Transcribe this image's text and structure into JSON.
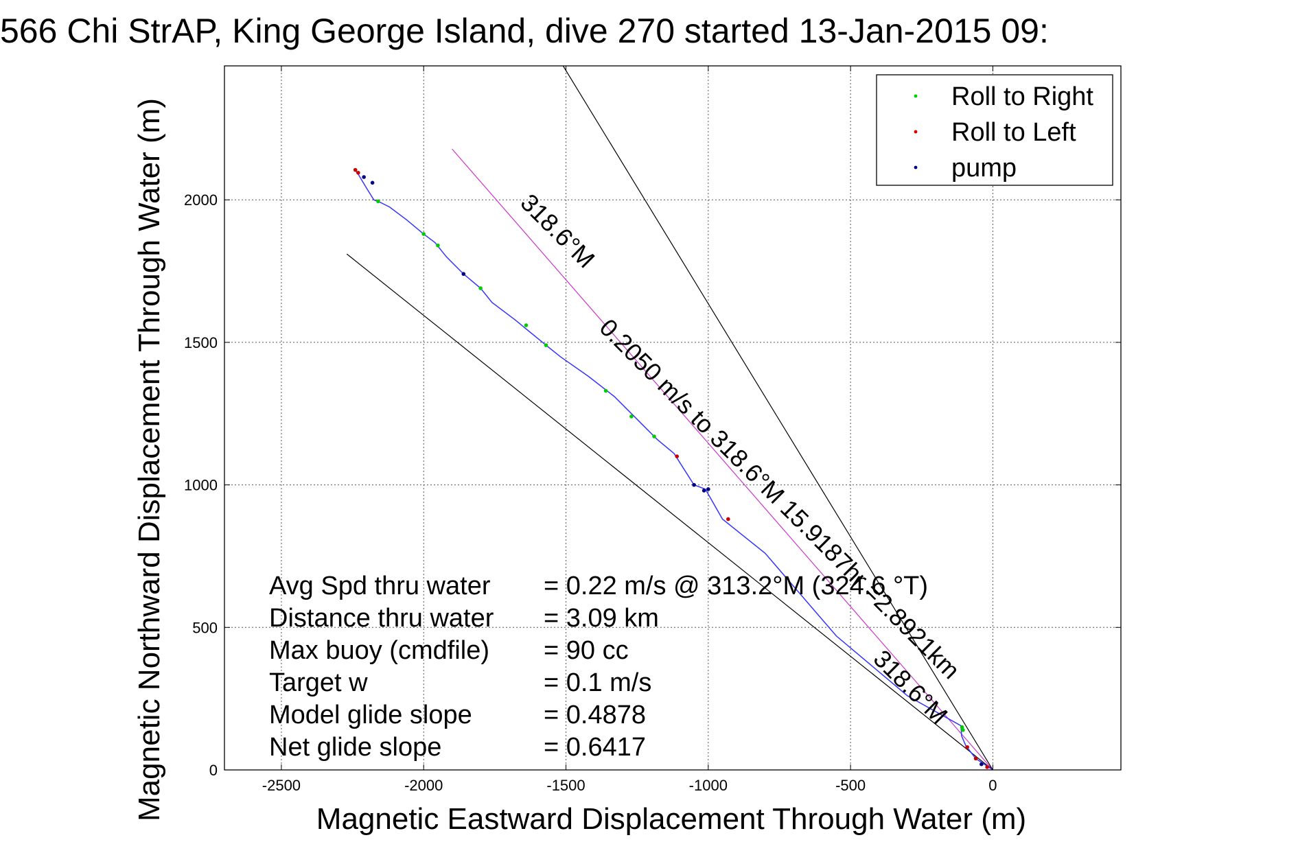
{
  "chart_data": {
    "type": "scatter",
    "title": "566 Chi StrAP, King George Island, dive 270 started 13-Jan-2015 09:",
    "xlabel": "Magnetic Eastward Displacement Through Water (m)",
    "ylabel": "Magnetic Northward Displacement Through Water (m)",
    "xlim": [
      -2700,
      450
    ],
    "ylim": [
      0,
      2470
    ],
    "xticks": [
      -2500,
      -2000,
      -1500,
      -1000,
      -500,
      0
    ],
    "yticks": [
      0,
      500,
      1000,
      1500,
      2000
    ],
    "grid": true,
    "legend_position": "top-right",
    "legend": [
      {
        "label": "Roll to Right",
        "color": "#00cc00"
      },
      {
        "label": "Roll to Left",
        "color": "#cc0000"
      },
      {
        "label": "pump",
        "color": "#000080"
      }
    ],
    "track": {
      "color": "#3333ff",
      "points": [
        [
          0,
          0
        ],
        [
          -60,
          40
        ],
        [
          -95,
          85
        ],
        [
          -110,
          120
        ],
        [
          -112,
          155
        ],
        [
          -300,
          260
        ],
        [
          -550,
          470
        ],
        [
          -800,
          760
        ],
        [
          -950,
          880
        ],
        [
          -1010,
          985
        ],
        [
          -1050,
          1000
        ],
        [
          -1120,
          1110
        ],
        [
          -1180,
          1160
        ],
        [
          -1250,
          1230
        ],
        [
          -1330,
          1310
        ],
        [
          -1420,
          1380
        ],
        [
          -1520,
          1450
        ],
        [
          -1570,
          1490
        ],
        [
          -1680,
          1580
        ],
        [
          -1760,
          1640
        ],
        [
          -1800,
          1690
        ],
        [
          -1860,
          1740
        ],
        [
          -1920,
          1800
        ],
        [
          -1960,
          1850
        ],
        [
          -2000,
          1880
        ],
        [
          -2060,
          1930
        ],
        [
          -2120,
          1975
        ],
        [
          -2150,
          1990
        ],
        [
          -2175,
          2000
        ],
        [
          -2200,
          2040
        ],
        [
          -2230,
          2090
        ],
        [
          -2245,
          2110
        ]
      ]
    },
    "roll_right_points": [
      [
        -105,
        140
      ],
      [
        -108,
        150
      ],
      [
        -1570,
        1490
      ],
      [
        -1640,
        1560
      ],
      [
        -1800,
        1690
      ],
      [
        -1950,
        1840
      ],
      [
        -2000,
        1880
      ],
      [
        -2160,
        1995
      ],
      [
        -1190,
        1170
      ],
      [
        -1270,
        1240
      ],
      [
        -1360,
        1330
      ]
    ],
    "roll_left_points": [
      [
        -90,
        80
      ],
      [
        -60,
        40
      ],
      [
        -20,
        10
      ],
      [
        -930,
        880
      ],
      [
        -1110,
        1100
      ],
      [
        -2230,
        2095
      ],
      [
        -2240,
        2105
      ]
    ],
    "pump_points": [
      [
        -40,
        20
      ],
      [
        -1000,
        985
      ],
      [
        -1015,
        980
      ],
      [
        -1050,
        1000
      ],
      [
        -1860,
        1740
      ],
      [
        -2180,
        2060
      ],
      [
        -2210,
        2080
      ]
    ],
    "reference_lines": [
      {
        "type": "line",
        "from": [
          0,
          0
        ],
        "to": [
          -1900,
          2178
        ],
        "color": "#cc33cc"
      },
      {
        "type": "line",
        "from": [
          0,
          0
        ],
        "to": [
          -1510,
          2470
        ],
        "color": "#000000"
      },
      {
        "type": "line",
        "from": [
          0,
          0
        ],
        "to": [
          -2270,
          1810
        ],
        "color": "#000000"
      }
    ],
    "line_labels": [
      {
        "text": "318.6°M",
        "at": [
          -1550,
          1870
        ],
        "angle_deg": 45
      },
      {
        "text": "0.2050 m/s to 318.6°M 15.9187hr =2.8921km",
        "at": [
          -770,
          930
        ],
        "angle_deg": 45
      },
      {
        "text": "318.6°M",
        "at": [
          -310,
          270
        ],
        "angle_deg": 45
      }
    ],
    "annotations": [
      {
        "label": "Avg Spd thru water",
        "value": "=  0.22 m/s @ 313.2°M (324.6 °T)"
      },
      {
        "label": "Distance thru water",
        "value": "=  3.09 km"
      },
      {
        "label": "Max buoy (cmdfile)",
        "value": "= 90 cc"
      },
      {
        "label": "Target w",
        "value": "= 0.1 m/s"
      },
      {
        "label": "Model glide slope",
        "value": "= 0.4878"
      },
      {
        "label": "Net glide slope",
        "value": "= 0.6417"
      }
    ]
  }
}
